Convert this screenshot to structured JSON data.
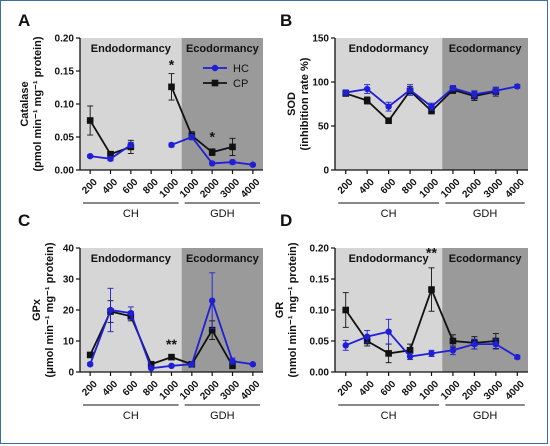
{
  "colors": {
    "HC": "#1f1fd6",
    "CP": "#111111",
    "endo_bg": "#d6d6d6",
    "eco_bg": "#9a9a9a",
    "frame": "#3b6ea5"
  },
  "chart_data": [
    {
      "panel": "A",
      "type": "line",
      "ylabel_lines": [
        "Catalase",
        "(pmol min⁻¹ mg⁻¹ protein)"
      ],
      "ylim": [
        0,
        0.2
      ],
      "yticks": [
        "0.00",
        "0.05",
        "0.10",
        "0.15",
        "0.20"
      ],
      "categories": [
        "200",
        "400",
        "600",
        "800",
        "1000",
        "1000",
        "2000",
        "3000",
        "4000"
      ],
      "groups": [
        {
          "label": "CH",
          "from": 0,
          "to": 4
        },
        {
          "label": "GDH",
          "from": 5,
          "to": 8
        }
      ],
      "bands": [
        {
          "label": "Endodormancy",
          "from": 0,
          "to": 4
        },
        {
          "label": "Ecodormancy",
          "from": 5,
          "to": 8
        }
      ],
      "legend": [
        "HC",
        "CP"
      ],
      "series": [
        {
          "name": "HC",
          "values": [
            0.021,
            0.017,
            0.038,
            null,
            0.038,
            0.05,
            0.01,
            0.012,
            0.008
          ],
          "errors": [
            0.002,
            0.003,
            0.004,
            null,
            0.003,
            0.004,
            0.002,
            0.003,
            0.002
          ]
        },
        {
          "name": "CP",
          "values": [
            0.075,
            0.024,
            0.035,
            null,
            0.126,
            0.052,
            0.027,
            0.035,
            null
          ],
          "errors": [
            0.022,
            0.004,
            0.01,
            null,
            0.02,
            0.006,
            0.005,
            0.013,
            null
          ]
        }
      ],
      "annotations": [
        {
          "text": "*",
          "index": 4,
          "y": 0.152
        },
        {
          "text": "*",
          "index": 6,
          "y": 0.043
        }
      ]
    },
    {
      "panel": "B",
      "type": "line",
      "ylabel_lines": [
        "SOD",
        "(inhibition rate %)"
      ],
      "ylim": [
        0,
        150
      ],
      "yticks": [
        "0",
        "50",
        "100",
        "150"
      ],
      "categories": [
        "200",
        "400",
        "600",
        "800",
        "1000",
        "1000",
        "2000",
        "3000",
        "4000"
      ],
      "groups": [
        {
          "label": "CH",
          "from": 0,
          "to": 4
        },
        {
          "label": "GDH",
          "from": 5,
          "to": 8
        }
      ],
      "bands": [
        {
          "label": "Endodormancy",
          "from": 0,
          "to": 4
        },
        {
          "label": "Ecodormancy",
          "from": 5,
          "to": 8
        }
      ],
      "series": [
        {
          "name": "HC",
          "values": [
            88,
            92,
            72,
            91,
            72,
            93,
            86,
            90,
            95
          ],
          "errors": [
            3,
            5,
            5,
            6,
            4,
            3,
            4,
            4,
            2
          ]
        },
        {
          "name": "CP",
          "values": [
            87,
            79,
            56,
            90,
            67,
            91,
            84,
            89,
            null
          ],
          "errors": [
            3,
            4,
            3,
            5,
            3,
            4,
            5,
            5,
            null
          ]
        }
      ],
      "annotations": []
    },
    {
      "panel": "C",
      "type": "line",
      "ylabel_lines": [
        "GPx",
        "(μmol min⁻¹ mg⁻¹ protein)"
      ],
      "ylim": [
        0,
        40
      ],
      "yticks": [
        "0",
        "10",
        "20",
        "30",
        "40"
      ],
      "categories": [
        "200",
        "400",
        "600",
        "800",
        "1000",
        "1000",
        "2000",
        "3000",
        "4000"
      ],
      "groups": [
        {
          "label": "CH",
          "from": 0,
          "to": 4
        },
        {
          "label": "GDH",
          "from": 5,
          "to": 8
        }
      ],
      "bands": [
        {
          "label": "Endodormancy",
          "from": 0,
          "to": 4
        },
        {
          "label": "Ecodormancy",
          "from": 5,
          "to": 8
        }
      ],
      "series": [
        {
          "name": "HC",
          "values": [
            2.5,
            20,
            19,
            1.2,
            2,
            2.5,
            23,
            3.5,
            2.5
          ],
          "errors": [
            0.5,
            7,
            2,
            0.3,
            0.4,
            0.4,
            9,
            1,
            0.4
          ]
        },
        {
          "name": "CP",
          "values": [
            5.5,
            19.5,
            18,
            2.5,
            4.8,
            2.5,
            13.5,
            2,
            null
          ],
          "errors": [
            0.8,
            3.5,
            1.5,
            0.5,
            0.5,
            0.4,
            3,
            0.5,
            null
          ]
        }
      ],
      "annotations": [
        {
          "text": "**",
          "index": 4,
          "y": 7.5
        }
      ]
    },
    {
      "panel": "D",
      "type": "line",
      "ylabel_lines": [
        "GR",
        "(nmol min⁻¹ mg⁻¹ protein)"
      ],
      "ylim": [
        0,
        0.2
      ],
      "yticks": [
        "0.00",
        "0.05",
        "0.10",
        "0.15",
        "0.20"
      ],
      "categories": [
        "200",
        "400",
        "600",
        "800",
        "1000",
        "1000",
        "2000",
        "3000",
        "4000"
      ],
      "groups": [
        {
          "label": "CH",
          "from": 0,
          "to": 4
        },
        {
          "label": "GDH",
          "from": 5,
          "to": 8
        }
      ],
      "bands": [
        {
          "label": "Endodormancy",
          "from": 0,
          "to": 4
        },
        {
          "label": "Ecodormancy",
          "from": 5,
          "to": 8
        }
      ],
      "series": [
        {
          "name": "HC",
          "values": [
            0.043,
            0.057,
            0.065,
            0.025,
            0.03,
            0.035,
            0.045,
            0.045,
            0.024
          ],
          "errors": [
            0.008,
            0.01,
            0.02,
            0.005,
            0.005,
            0.007,
            0.008,
            0.008,
            0.003
          ]
        },
        {
          "name": "CP",
          "values": [
            0.1,
            0.05,
            0.03,
            0.035,
            0.133,
            0.05,
            0.047,
            0.05,
            null
          ],
          "errors": [
            0.028,
            0.008,
            0.015,
            0.01,
            0.035,
            0.01,
            0.01,
            0.012,
            null
          ]
        }
      ],
      "annotations": [
        {
          "text": "**",
          "index": 4,
          "y": 0.185
        }
      ]
    }
  ]
}
